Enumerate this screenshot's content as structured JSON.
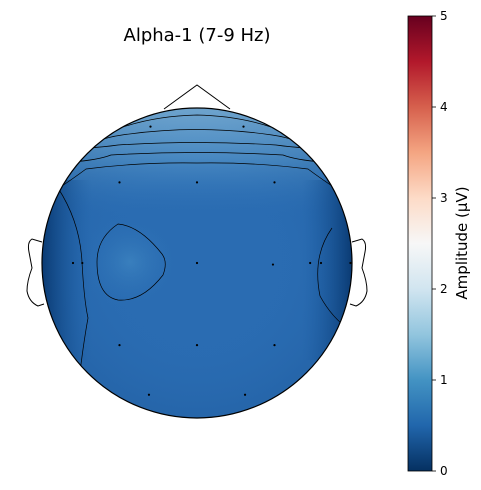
{
  "chart_data": {
    "type": "heatmap",
    "subtype": "eeg-topomap",
    "title": "Alpha-1 (7-9 Hz)",
    "colorbar": {
      "label": "Amplitude (µV)",
      "range": [
        0,
        5
      ],
      "ticks": [
        "0",
        "1",
        "2",
        "3",
        "4",
        "5"
      ],
      "colormap": "RdBu_r"
    },
    "color_stops": [
      "#053061",
      "#2166ac",
      "#4393c3",
      "#92c5de",
      "#d1e5f0",
      "#f7f7f7",
      "#fddbc7",
      "#f4a582",
      "#d6604d",
      "#b2182b",
      "#67001f"
    ],
    "contours": true,
    "electrodes": [
      {
        "x": -0.3,
        "y": 0.88,
        "value": 1.5
      },
      {
        "x": 0.3,
        "y": 0.88,
        "value": 1.5
      },
      {
        "x": -0.5,
        "y": 0.52,
        "value": 0.8
      },
      {
        "x": 0.0,
        "y": 0.52,
        "value": 0.8
      },
      {
        "x": 0.5,
        "y": 0.52,
        "value": 0.8
      },
      {
        "x": -0.8,
        "y": 0.0,
        "value": 0.4
      },
      {
        "x": -0.74,
        "y": 0.0,
        "value": 0.5
      },
      {
        "x": 0.0,
        "y": 0.0,
        "value": 0.75
      },
      {
        "x": 0.49,
        "y": -0.01,
        "value": 0.75
      },
      {
        "x": 0.73,
        "y": 0.0,
        "value": 0.5
      },
      {
        "x": 0.8,
        "y": 0.0,
        "value": 0.4
      },
      {
        "x": 0.99,
        "y": 0.0,
        "value": 0.3
      },
      {
        "x": -0.5,
        "y": -0.53,
        "value": 0.75
      },
      {
        "x": 0.0,
        "y": -0.53,
        "value": 0.75
      },
      {
        "x": 0.5,
        "y": -0.53,
        "value": 0.75
      },
      {
        "x": -0.31,
        "y": -0.85,
        "value": 0.75
      },
      {
        "x": 0.31,
        "y": -0.85,
        "value": 0.75
      }
    ]
  }
}
